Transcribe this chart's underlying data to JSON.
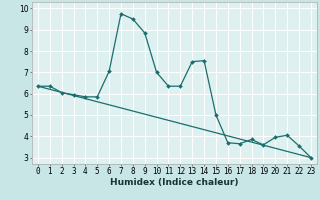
{
  "xlabel": "Humidex (Indice chaleur)",
  "ylabel": "",
  "background_color": "#c8e6e6",
  "plot_bg_color": "#dff0f0",
  "grid_color": "#ffffff",
  "line_color": "#1a6e6e",
  "xlim": [
    -0.5,
    23.5
  ],
  "ylim": [
    2.7,
    10.3
  ],
  "x_ticks": [
    0,
    1,
    2,
    3,
    4,
    5,
    6,
    7,
    8,
    9,
    10,
    11,
    12,
    13,
    14,
    15,
    16,
    17,
    18,
    19,
    20,
    21,
    22,
    23
  ],
  "y_ticks": [
    3,
    4,
    5,
    6,
    7,
    8,
    9,
    10
  ],
  "curve1_x": [
    0,
    1,
    2,
    3,
    4,
    5,
    6,
    7,
    8,
    9,
    10,
    11,
    12,
    13,
    14,
    15,
    16,
    17,
    18,
    19,
    20,
    21,
    22,
    23
  ],
  "curve1_y": [
    6.35,
    6.35,
    6.05,
    5.95,
    5.85,
    5.85,
    7.05,
    9.75,
    9.5,
    8.85,
    7.0,
    6.35,
    6.35,
    7.5,
    7.55,
    5.0,
    3.7,
    3.65,
    3.85,
    3.6,
    3.95,
    4.05,
    3.55,
    3.0
  ],
  "curve2_x": [
    0,
    23
  ],
  "curve2_y": [
    6.35,
    3.0
  ],
  "marker_style": "D",
  "marker_size": 2.0,
  "line_width": 0.9,
  "font_size_label": 6.5,
  "font_size_tick": 5.5
}
